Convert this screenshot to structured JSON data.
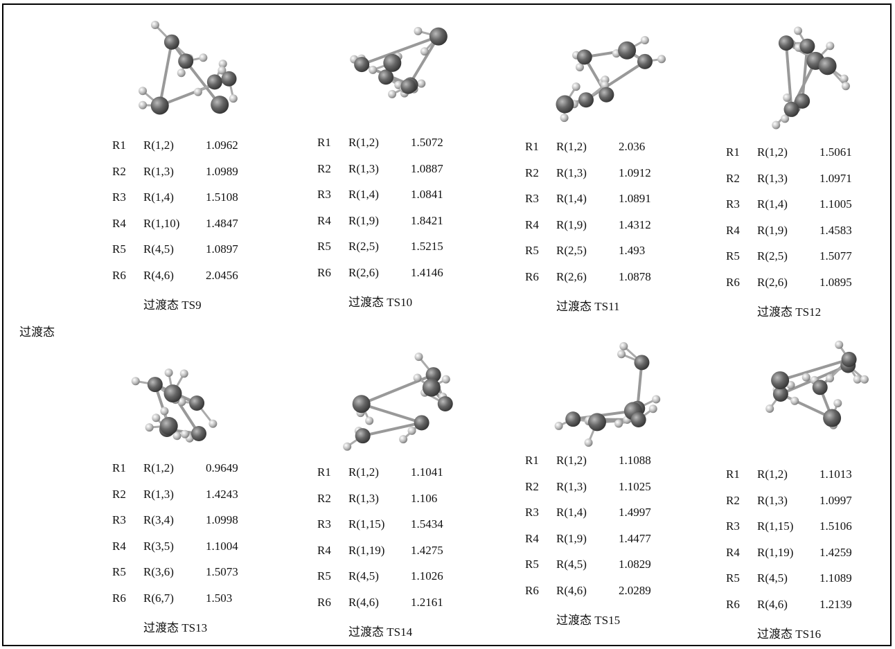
{
  "side_label": "过渡态",
  "panels": [
    {
      "caption": "过渡态 TS9",
      "rows": [
        [
          "R1",
          "R(1,2)",
          "1.0962"
        ],
        [
          "R2",
          "R(1,3)",
          "1.0989"
        ],
        [
          "R3",
          "R(1,4)",
          "1.5108"
        ],
        [
          "R4",
          "R(1,10)",
          "1.4847"
        ],
        [
          "R5",
          "R(4,5)",
          "1.0897"
        ],
        [
          "R6",
          "R(4,6)",
          "2.0456"
        ]
      ]
    },
    {
      "caption": "过渡态 TS10",
      "rows": [
        [
          "R1",
          "R(1,2)",
          "1.5072"
        ],
        [
          "R2",
          "R(1,3)",
          "1.0887"
        ],
        [
          "R3",
          "R(1,4)",
          "1.0841"
        ],
        [
          "R4",
          "R(1,9)",
          "1.8421"
        ],
        [
          "R5",
          "R(2,5)",
          "1.5215"
        ],
        [
          "R6",
          "R(2,6)",
          "1.4146"
        ]
      ]
    },
    {
      "caption": "过渡态 TS11",
      "rows": [
        [
          "R1",
          "R(1,2)",
          "2.036"
        ],
        [
          "R2",
          "R(1,3)",
          "1.0912"
        ],
        [
          "R3",
          "R(1,4)",
          "1.0891"
        ],
        [
          "R4",
          "R(1,9)",
          "1.4312"
        ],
        [
          "R5",
          "R(2,5)",
          "1.493"
        ],
        [
          "R6",
          "R(2,6)",
          "1.0878"
        ]
      ]
    },
    {
      "caption": "过渡态 TS12",
      "rows": [
        [
          "R1",
          "R(1,2)",
          "1.5061"
        ],
        [
          "R2",
          "R(1,3)",
          "1.0971"
        ],
        [
          "R3",
          "R(1,4)",
          "1.1005"
        ],
        [
          "R4",
          "R(1,9)",
          "1.4583"
        ],
        [
          "R5",
          "R(2,5)",
          "1.5077"
        ],
        [
          "R6",
          "R(2,6)",
          "1.0895"
        ]
      ]
    },
    {
      "caption": "过渡态 TS13",
      "rows": [
        [
          "R1",
          "R(1,2)",
          "0.9649"
        ],
        [
          "R2",
          "R(1,3)",
          "1.4243"
        ],
        [
          "R3",
          "R(3,4)",
          "1.0998"
        ],
        [
          "R4",
          "R(3,5)",
          "1.1004"
        ],
        [
          "R5",
          "R(3,6)",
          "1.5073"
        ],
        [
          "R6",
          "R(6,7)",
          "1.503"
        ]
      ]
    },
    {
      "caption": "过渡态 TS14",
      "rows": [
        [
          "R1",
          "R(1,2)",
          "1.1041"
        ],
        [
          "R2",
          "R(1,3)",
          "1.106"
        ],
        [
          "R3",
          "R(1,15)",
          "1.5434"
        ],
        [
          "R4",
          "R(1,19)",
          "1.4275"
        ],
        [
          "R5",
          "R(4,5)",
          "1.1026"
        ],
        [
          "R6",
          "R(4,6)",
          "1.2161"
        ]
      ]
    },
    {
      "caption": "过渡态 TS15",
      "rows": [
        [
          "R1",
          "R(1,2)",
          "1.1088"
        ],
        [
          "R2",
          "R(1,3)",
          "1.1025"
        ],
        [
          "R3",
          "R(1,4)",
          "1.4997"
        ],
        [
          "R4",
          "R(1,9)",
          "1.4477"
        ],
        [
          "R5",
          "R(4,5)",
          "1.0829"
        ],
        [
          "R6",
          "R(4,6)",
          "2.0289"
        ]
      ]
    },
    {
      "caption": "过渡态 TS16",
      "rows": [
        [
          "R1",
          "R(1,2)",
          "1.1013"
        ],
        [
          "R2",
          "R(1,3)",
          "1.0997"
        ],
        [
          "R3",
          "R(1,15)",
          "1.5106"
        ],
        [
          "R4",
          "R(1,19)",
          "1.4259"
        ],
        [
          "R5",
          "R(4,5)",
          "1.1089"
        ],
        [
          "R6",
          "R(4,6)",
          "1.2139"
        ]
      ]
    }
  ]
}
